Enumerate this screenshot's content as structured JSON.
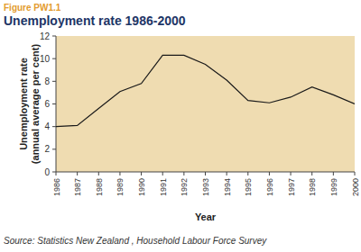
{
  "chart_data": {
    "type": "line",
    "figure_label": "Figure PW1.1",
    "title": "Unemployment rate 1986-2000",
    "y_label": [
      "Unemployment rate",
      "(annual average per cent)"
    ],
    "x_label": "Year",
    "source": "Source: Statistics New Zealand , Household Labour Force Survey",
    "x": [
      1986,
      1987,
      1988,
      1989,
      1990,
      1991,
      1992,
      1993,
      1994,
      1995,
      1996,
      1997,
      1998,
      1999,
      2000
    ],
    "values": [
      4.0,
      4.1,
      5.6,
      7.1,
      7.8,
      10.3,
      10.3,
      9.5,
      8.1,
      6.3,
      6.1,
      6.6,
      7.5,
      6.8,
      6.0
    ],
    "color": "#1a1a1a",
    "xlim": [
      1986,
      2000
    ],
    "xticks": [
      1986,
      1987,
      1988,
      1989,
      1990,
      1991,
      1992,
      1993,
      1994,
      1995,
      1996,
      1997,
      1998,
      1999,
      2000
    ],
    "ylim": [
      0,
      12
    ],
    "yticks": [
      0,
      2,
      4,
      6,
      8,
      10,
      12
    ],
    "grid": false
  }
}
